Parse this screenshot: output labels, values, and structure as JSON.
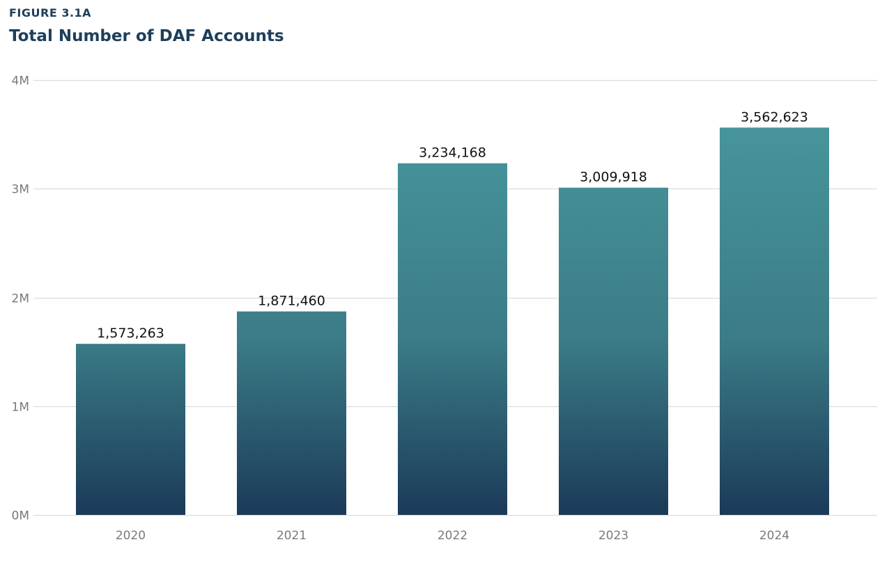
{
  "figure_label": "FIGURE 3.1A",
  "chart_data": {
    "type": "bar",
    "title": "Total Number of DAF Accounts",
    "xlabel": "",
    "ylabel": "",
    "categories": [
      "2020",
      "2021",
      "2022",
      "2023",
      "2024"
    ],
    "values": [
      1573263,
      1871460,
      3234168,
      3009918,
      3562623
    ],
    "value_labels": [
      "1,573,263",
      "1,871,460",
      "3,234,168",
      "3,009,918",
      "3,562,623"
    ],
    "ylim": [
      0,
      4000000
    ],
    "yticks": [
      0,
      1000000,
      2000000,
      3000000,
      4000000
    ],
    "ytick_labels": [
      "0M",
      "1M",
      "2M",
      "3M",
      "4M"
    ],
    "grid": true,
    "legend": "none",
    "colors": {
      "bar_top": "#47959b",
      "bar_bottom": "#1b3a58",
      "title": "#1d3f5b",
      "grid": "#d6d6d6"
    }
  }
}
